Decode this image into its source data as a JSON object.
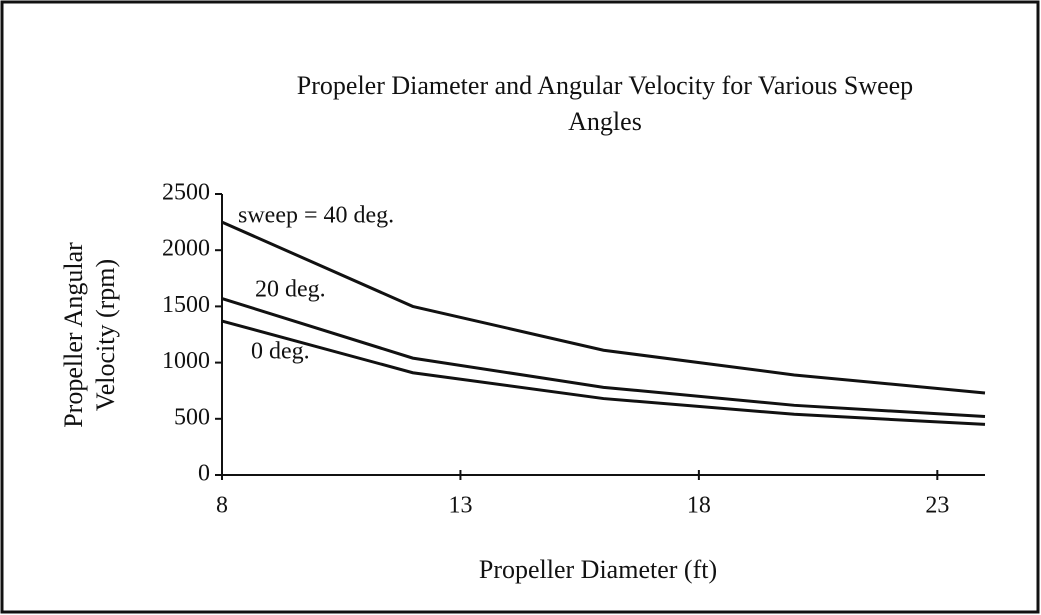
{
  "chart_data": {
    "type": "line",
    "title": [
      "Propeler Diameter and Angular Velocity for Various Sweep",
      "Angles"
    ],
    "xlabel": "Propeller Diameter (ft)",
    "ylabel": [
      "Propeller Angular",
      "Velocity (rpm)"
    ],
    "x": [
      8,
      12,
      16,
      20,
      24
    ],
    "series": [
      {
        "name": "sweep = 40 deg.",
        "color": "#111111",
        "values": [
          2250,
          1500,
          1110,
          890,
          730
        ]
      },
      {
        "name": "20 deg.",
        "color": "#111111",
        "values": [
          1570,
          1040,
          780,
          620,
          520
        ]
      },
      {
        "name": "0 deg.",
        "color": "#111111",
        "values": [
          1370,
          910,
          680,
          540,
          450
        ]
      }
    ],
    "xlim": [
      8,
      24
    ],
    "xticks": [
      8,
      13,
      18,
      23
    ],
    "ylim": [
      0,
      2500
    ],
    "yticks": [
      0,
      500,
      1000,
      1500,
      2000,
      2500
    ],
    "grid": false
  }
}
